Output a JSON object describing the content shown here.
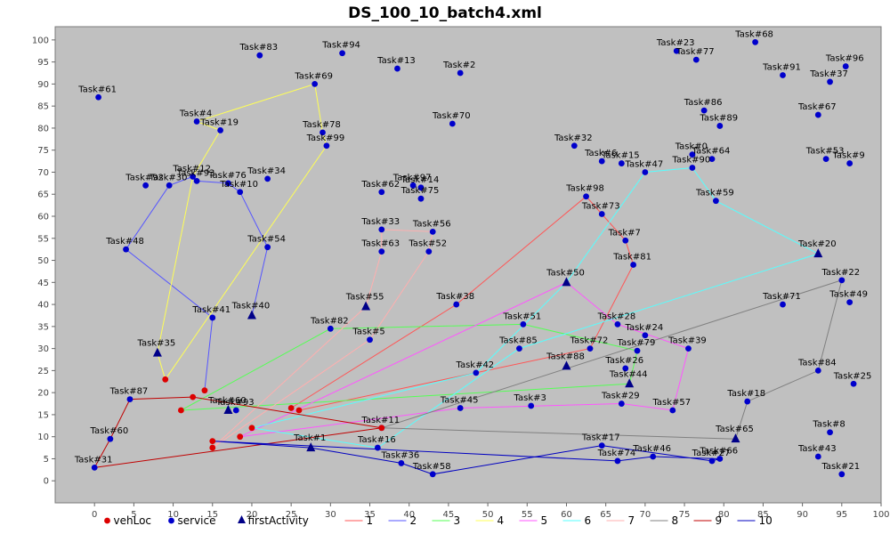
{
  "chart_data": {
    "type": "scatter",
    "title": "DS_100_10_batch4.xml",
    "xlim": [
      -5,
      100
    ],
    "ylim": [
      -5,
      103
    ],
    "x_ticks": [
      0,
      5,
      10,
      15,
      20,
      25,
      30,
      35,
      40,
      45,
      50,
      55,
      60,
      65,
      70,
      75,
      80,
      85,
      90,
      95,
      100
    ],
    "y_ticks": [
      0,
      5,
      10,
      15,
      20,
      25,
      30,
      35,
      40,
      45,
      50,
      55,
      60,
      65,
      70,
      75,
      80,
      85,
      90,
      95,
      100
    ],
    "background": "#c0c0c0",
    "grid": false,
    "legend_position": "bottom",
    "legend": [
      {
        "label": "vehLoc",
        "symbol": "dot",
        "color": "#dd0000"
      },
      {
        "label": "service",
        "symbol": "dot",
        "color": "#0000cc"
      },
      {
        "label": "firstActivity",
        "symbol": "triangle",
        "color": "#000088"
      },
      {
        "label": "1",
        "symbol": "line",
        "color": "#ff5555"
      },
      {
        "label": "2",
        "symbol": "line",
        "color": "#5555ff"
      },
      {
        "label": "3",
        "symbol": "line",
        "color": "#55ff55"
      },
      {
        "label": "4",
        "symbol": "line",
        "color": "#ffff55"
      },
      {
        "label": "5",
        "symbol": "line",
        "color": "#ff55ff"
      },
      {
        "label": "6",
        "symbol": "line",
        "color": "#55ffff"
      },
      {
        "label": "7",
        "symbol": "line",
        "color": "#ffafaf"
      },
      {
        "label": "8",
        "symbol": "line",
        "color": "#808080"
      },
      {
        "label": "9",
        "symbol": "line",
        "color": "#c00000"
      },
      {
        "label": "10",
        "symbol": "line",
        "color": "#0000c0"
      }
    ],
    "vehLoc": [
      [
        9,
        23
      ],
      [
        12.5,
        19
      ],
      [
        14,
        20.5
      ],
      [
        11,
        16
      ],
      [
        15,
        9
      ],
      [
        15,
        7.5
      ],
      [
        18.5,
        10
      ],
      [
        20,
        12
      ],
      [
        25,
        16.5
      ],
      [
        26,
        16
      ],
      [
        36.5,
        12
      ]
    ],
    "first_activities": [
      {
        "name": "Task#35",
        "x": 8,
        "y": 29
      },
      {
        "name": "Task#40",
        "x": 20,
        "y": 37.5
      },
      {
        "name": "Task#60",
        "x": 17,
        "y": 16
      },
      {
        "name": "Task#1",
        "x": 27.5,
        "y": 7.5
      },
      {
        "name": "Task#55",
        "x": 34.5,
        "y": 39.5
      },
      {
        "name": "Task#88",
        "x": 60,
        "y": 26
      },
      {
        "name": "Task#50",
        "x": 60,
        "y": 45
      },
      {
        "name": "Task#44",
        "x": 68,
        "y": 22
      },
      {
        "name": "Task#20",
        "x": 92,
        "y": 51.5
      },
      {
        "name": "Task#65",
        "x": 81.5,
        "y": 9.5
      }
    ],
    "tasks": [
      {
        "name": "Task#61",
        "x": 0.5,
        "y": 87
      },
      {
        "name": "Task#83",
        "x": 21,
        "y": 96.5
      },
      {
        "name": "Task#94",
        "x": 31.5,
        "y": 97
      },
      {
        "name": "Task#13",
        "x": 38.5,
        "y": 93.5
      },
      {
        "name": "Task#2",
        "x": 46.5,
        "y": 92.5
      },
      {
        "name": "Task#69",
        "x": 28,
        "y": 90
      },
      {
        "name": "Task#4",
        "x": 13,
        "y": 81.5
      },
      {
        "name": "Task#19",
        "x": 16,
        "y": 79.5
      },
      {
        "name": "Task#78",
        "x": 29,
        "y": 79
      },
      {
        "name": "Task#99",
        "x": 29.5,
        "y": 76
      },
      {
        "name": "Task#70",
        "x": 45.5,
        "y": 81
      },
      {
        "name": "Task#23",
        "x": 74,
        "y": 97.5
      },
      {
        "name": "Task#77",
        "x": 76.5,
        "y": 95.5
      },
      {
        "name": "Task#68",
        "x": 84,
        "y": 99.5
      },
      {
        "name": "Task#91",
        "x": 87.5,
        "y": 92
      },
      {
        "name": "Task#96",
        "x": 95.5,
        "y": 94
      },
      {
        "name": "Task#37",
        "x": 93.5,
        "y": 90.5
      },
      {
        "name": "Task#86",
        "x": 77.5,
        "y": 84
      },
      {
        "name": "Task#89",
        "x": 79.5,
        "y": 80.5
      },
      {
        "name": "Task#67",
        "x": 92,
        "y": 83
      },
      {
        "name": "Task#32",
        "x": 61,
        "y": 76
      },
      {
        "name": "Task#6",
        "x": 64.5,
        "y": 72.5
      },
      {
        "name": "Task#15",
        "x": 67,
        "y": 72
      },
      {
        "name": "Task#47",
        "x": 70,
        "y": 70
      },
      {
        "name": "Task#0",
        "x": 76,
        "y": 74
      },
      {
        "name": "Task#64",
        "x": 78.5,
        "y": 73
      },
      {
        "name": "Task#90",
        "x": 76,
        "y": 71
      },
      {
        "name": "Task#53",
        "x": 93,
        "y": 73
      },
      {
        "name": "Task#9",
        "x": 96,
        "y": 72
      },
      {
        "name": "Task#92",
        "x": 6.5,
        "y": 67
      },
      {
        "name": "Task#30",
        "x": 9.5,
        "y": 67
      },
      {
        "name": "Task#12",
        "x": 12.5,
        "y": 69
      },
      {
        "name": "Task#93",
        "x": 13,
        "y": 68
      },
      {
        "name": "Task#76",
        "x": 17,
        "y": 67.5
      },
      {
        "name": "Task#34",
        "x": 22,
        "y": 68.5
      },
      {
        "name": "Task#10",
        "x": 18.5,
        "y": 65.5
      },
      {
        "name": "Task#62",
        "x": 36.5,
        "y": 65.5
      },
      {
        "name": "Task#97",
        "x": 40.5,
        "y": 67
      },
      {
        "name": "Task#14",
        "x": 41.5,
        "y": 66.5
      },
      {
        "name": "Task#75",
        "x": 41.5,
        "y": 64
      },
      {
        "name": "Task#98",
        "x": 62.5,
        "y": 64.5
      },
      {
        "name": "Task#73",
        "x": 64.5,
        "y": 60.5
      },
      {
        "name": "Task#59",
        "x": 79,
        "y": 63.5
      },
      {
        "name": "Task#33",
        "x": 36.5,
        "y": 57
      },
      {
        "name": "Task#56",
        "x": 43,
        "y": 56.5
      },
      {
        "name": "Task#63",
        "x": 36.5,
        "y": 52
      },
      {
        "name": "Task#52",
        "x": 42.5,
        "y": 52
      },
      {
        "name": "Task#54",
        "x": 22,
        "y": 53
      },
      {
        "name": "Task#48",
        "x": 4,
        "y": 52.5
      },
      {
        "name": "Task#7",
        "x": 67.5,
        "y": 54.5
      },
      {
        "name": "Task#81",
        "x": 68.5,
        "y": 49
      },
      {
        "name": "Task#22",
        "x": 95,
        "y": 45.5
      },
      {
        "name": "Task#49",
        "x": 96,
        "y": 40.5
      },
      {
        "name": "Task#71",
        "x": 87.5,
        "y": 40
      },
      {
        "name": "Task#38",
        "x": 46,
        "y": 40
      },
      {
        "name": "Task#41",
        "x": 15,
        "y": 37
      },
      {
        "name": "Task#82",
        "x": 30,
        "y": 34.5
      },
      {
        "name": "Task#5",
        "x": 35,
        "y": 32
      },
      {
        "name": "Task#51",
        "x": 54.5,
        "y": 35.5
      },
      {
        "name": "Task#28",
        "x": 66.5,
        "y": 35.5
      },
      {
        "name": "Task#24",
        "x": 70,
        "y": 33
      },
      {
        "name": "Task#79",
        "x": 69,
        "y": 29.5
      },
      {
        "name": "Task#39",
        "x": 75.5,
        "y": 30
      },
      {
        "name": "Task#85",
        "x": 54,
        "y": 30
      },
      {
        "name": "Task#72",
        "x": 63,
        "y": 30
      },
      {
        "name": "Task#42",
        "x": 48.5,
        "y": 24.5
      },
      {
        "name": "Task#26",
        "x": 67.5,
        "y": 25.5
      },
      {
        "name": "Task#84",
        "x": 92,
        "y": 25
      },
      {
        "name": "Task#25",
        "x": 96.5,
        "y": 22
      },
      {
        "name": "Task#18",
        "x": 83,
        "y": 18
      },
      {
        "name": "Task#29",
        "x": 67,
        "y": 17.5
      },
      {
        "name": "Task#57",
        "x": 73.5,
        "y": 16
      },
      {
        "name": "Task#45",
        "x": 46.5,
        "y": 16.5
      },
      {
        "name": "Task#3",
        "x": 55.5,
        "y": 17
      },
      {
        "name": "Task#87",
        "x": 4.5,
        "y": 18.5
      },
      {
        "name": "Task#93b",
        "x": 18,
        "y": 16
      },
      {
        "name": "Task#11",
        "x": 36.5,
        "y": 12
      },
      {
        "name": "Task#60b",
        "x": 2,
        "y": 9.5
      },
      {
        "name": "Task#16",
        "x": 36,
        "y": 7.5
      },
      {
        "name": "Task#36",
        "x": 39,
        "y": 4
      },
      {
        "name": "Task#58",
        "x": 43,
        "y": 1.5
      },
      {
        "name": "Task#17",
        "x": 64.5,
        "y": 8
      },
      {
        "name": "Task#46",
        "x": 71,
        "y": 5.5
      },
      {
        "name": "Task#74",
        "x": 66.5,
        "y": 4.5
      },
      {
        "name": "Task#66",
        "x": 79.5,
        "y": 5
      },
      {
        "name": "Task#27",
        "x": 78.5,
        "y": 4.5
      },
      {
        "name": "Task#8",
        "x": 93.5,
        "y": 11
      },
      {
        "name": "Task#43",
        "x": 92,
        "y": 5.5
      },
      {
        "name": "Task#21",
        "x": 95,
        "y": 1.5
      },
      {
        "name": "Task#31",
        "x": 0,
        "y": 3
      }
    ],
    "task_display_labels": {
      "Task#93b": "Task#93",
      "Task#60b": "Task#60"
    },
    "routes": [
      {
        "name": "1",
        "points": [
          [
            25,
            16.5
          ],
          [
            46,
            40
          ],
          [
            62.5,
            64.5
          ],
          [
            64.5,
            60.5
          ],
          [
            67.5,
            54.5
          ],
          [
            68.5,
            49
          ],
          [
            63,
            30
          ],
          [
            26,
            16
          ]
        ]
      },
      {
        "name": "2",
        "points": [
          [
            14,
            20.5
          ],
          [
            15,
            37
          ],
          [
            4,
            52.5
          ],
          [
            9.5,
            67
          ],
          [
            12.5,
            69
          ],
          [
            13,
            68
          ],
          [
            17,
            67.5
          ],
          [
            18.5,
            65.5
          ],
          [
            22,
            53
          ],
          [
            20,
            37.5
          ]
        ]
      },
      {
        "name": "3",
        "points": [
          [
            11,
            16
          ],
          [
            30,
            34.5
          ],
          [
            54.5,
            35.5
          ],
          [
            69,
            29.5
          ],
          [
            68,
            22
          ],
          [
            11,
            16
          ]
        ]
      },
      {
        "name": "4",
        "points": [
          [
            9,
            23
          ],
          [
            8,
            29
          ],
          [
            12.5,
            69
          ],
          [
            16,
            79.5
          ],
          [
            13,
            81.5
          ],
          [
            28,
            90
          ],
          [
            29,
            79
          ],
          [
            29.5,
            76
          ],
          [
            9,
            23
          ]
        ]
      },
      {
        "name": "5",
        "points": [
          [
            18.5,
            10
          ],
          [
            60,
            45
          ],
          [
            66.5,
            35.5
          ],
          [
            75.5,
            30
          ],
          [
            73.5,
            16
          ],
          [
            67,
            17.5
          ],
          [
            46.5,
            16.5
          ],
          [
            18.5,
            10
          ]
        ]
      },
      {
        "name": "6",
        "points": [
          [
            20,
            12
          ],
          [
            48.5,
            24.5
          ],
          [
            60,
            45
          ],
          [
            70,
            70
          ],
          [
            76,
            71
          ],
          [
            79,
            63.5
          ],
          [
            92,
            51.5
          ],
          [
            54,
            30
          ],
          [
            36,
            7.5
          ],
          [
            20,
            12
          ]
        ]
      },
      {
        "name": "7",
        "points": [
          [
            15,
            7.5
          ],
          [
            34.5,
            39.5
          ],
          [
            36.5,
            52
          ],
          [
            36.5,
            57
          ],
          [
            43,
            56.5
          ],
          [
            42.5,
            52
          ],
          [
            35,
            32
          ],
          [
            15,
            7.5
          ]
        ]
      },
      {
        "name": "8",
        "points": [
          [
            36.5,
            12
          ],
          [
            95,
            45.5
          ],
          [
            92,
            25
          ],
          [
            83,
            18
          ],
          [
            81.5,
            9.5
          ],
          [
            36.5,
            12
          ]
        ]
      },
      {
        "name": "9",
        "points": [
          [
            12.5,
            19
          ],
          [
            4.5,
            18.5
          ],
          [
            2,
            9.5
          ],
          [
            0,
            3
          ],
          [
            36.5,
            12
          ],
          [
            12.5,
            19
          ]
        ]
      },
      {
        "name": "10",
        "points": [
          [
            15,
            9
          ],
          [
            27.5,
            7.5
          ],
          [
            39,
            4
          ],
          [
            43,
            1.5
          ],
          [
            64.5,
            8
          ],
          [
            78.5,
            4.5
          ],
          [
            79.5,
            5
          ],
          [
            71,
            5.5
          ],
          [
            66.5,
            4.5
          ],
          [
            15,
            9
          ]
        ]
      }
    ]
  }
}
